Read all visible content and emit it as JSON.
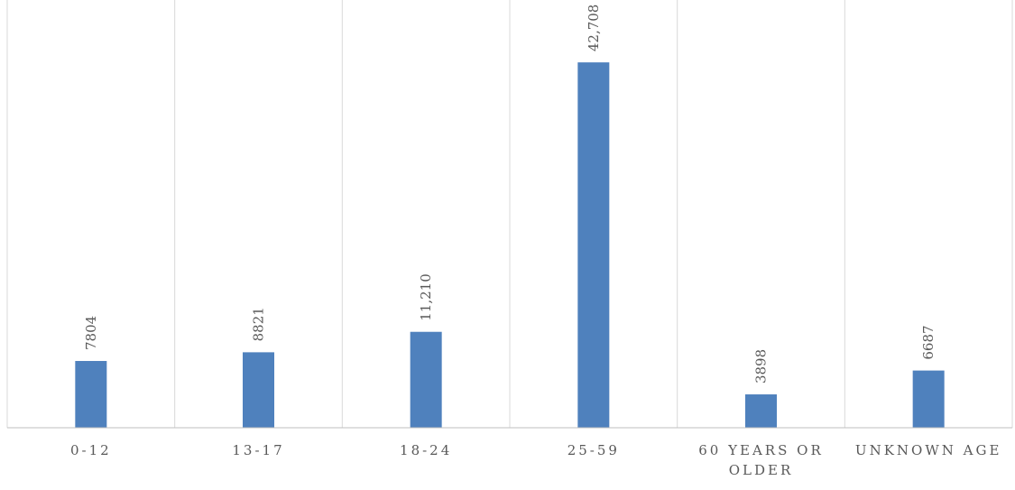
{
  "chart_data": {
    "type": "bar",
    "title": "",
    "xlabel": "",
    "ylabel": "",
    "categories": [
      [
        "0-12"
      ],
      [
        "13-17"
      ],
      [
        "18-24"
      ],
      [
        "25-59"
      ],
      [
        "60 YEARS OR",
        "OLDER"
      ],
      [
        "UNKNOWN AGE"
      ]
    ],
    "values": [
      7804,
      8821,
      11210,
      42708,
      3898,
      6687
    ],
    "data_labels": [
      "7804",
      "8821",
      "11,210",
      "42,708",
      "3898",
      "6687"
    ],
    "ylim": [
      0,
      50000
    ],
    "grid": "vertical category separators",
    "legend": "none",
    "bar_color": "#4f81bd",
    "grid_color": "#d9d9d9",
    "axis_color": "#bfbfbf",
    "text_color": "#595959"
  }
}
